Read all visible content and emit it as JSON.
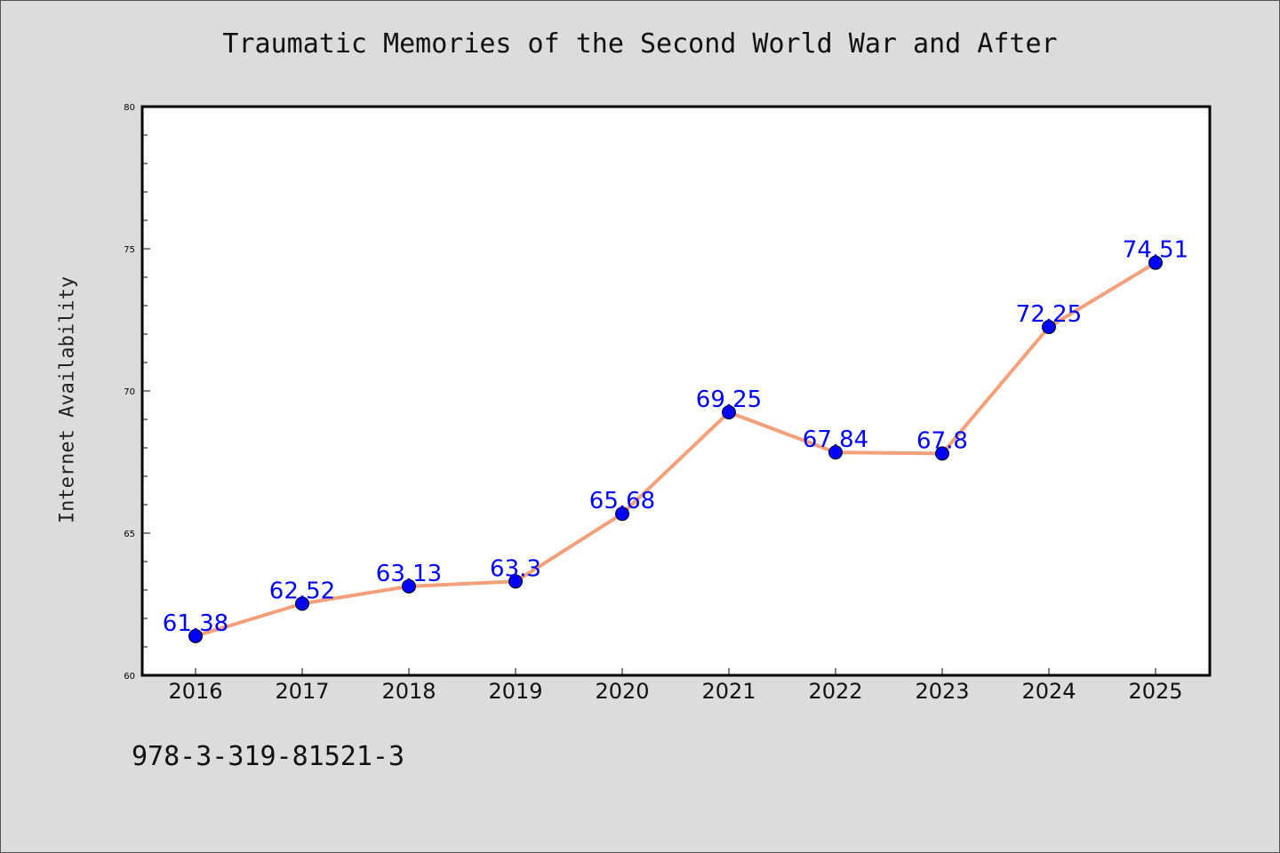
{
  "chart_data": {
    "type": "line",
    "title": "Traumatic Memories of the Second World War and After",
    "xlabel": "",
    "ylabel": "Internet Availability",
    "x": [
      "2016",
      "2017",
      "2018",
      "2019",
      "2020",
      "2021",
      "2022",
      "2023",
      "2024",
      "2025"
    ],
    "series": [
      {
        "values": [
          61.38,
          62.52,
          63.13,
          63.3,
          65.68,
          69.25,
          67.84,
          67.8,
          72.25,
          74.51
        ]
      }
    ],
    "data_labels": [
      "61.38",
      "62.52",
      "63.13",
      "63.3",
      "65.68",
      "69.25",
      "67.84",
      "67.8",
      "72.25",
      "74.51"
    ],
    "ylim": [
      60,
      80
    ],
    "yticks": [
      "60",
      "65",
      "70",
      "75",
      "80"
    ],
    "grid": false,
    "line_color": "#f4a07a",
    "marker_color": "#0000ff",
    "label_color": "#0000ff"
  },
  "footnote": "978-3-319-81521-3"
}
